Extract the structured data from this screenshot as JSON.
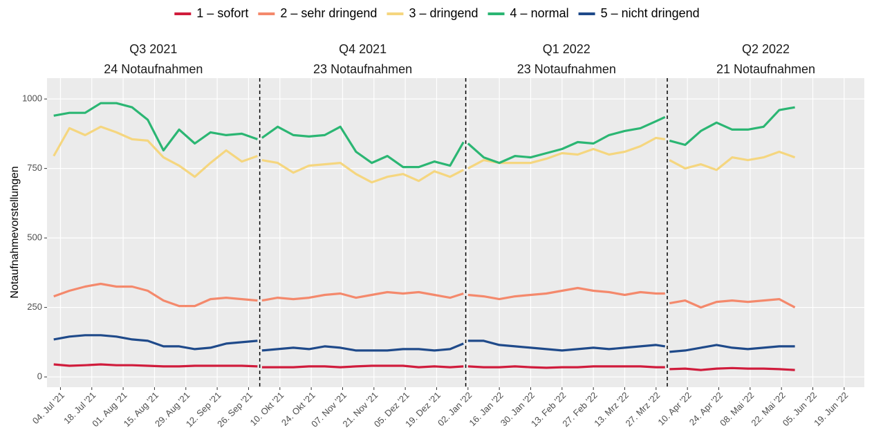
{
  "chart_data": {
    "type": "line",
    "ylabel": "Notaufnahmevorstellungen",
    "legend": "top",
    "grid": true,
    "panels": [
      {
        "title": "Q3 2021",
        "subtitle": "24 Notaufnahmen"
      },
      {
        "title": "Q4 2021",
        "subtitle": "23 Notaufnahmen"
      },
      {
        "title": "Q1 2022",
        "subtitle": "23 Notaufnahmen"
      },
      {
        "title": "Q2 2022",
        "subtitle": "21 Notaufnahmen"
      }
    ],
    "vlines": [
      "2021-10-01",
      "2022-01-01",
      "2022-04-01"
    ],
    "xlim": [
      "2021-06-28",
      "2022-06-28"
    ],
    "xticks": [
      {
        "value": "2021-07-04",
        "label": "04. Jul '21"
      },
      {
        "value": "2021-07-18",
        "label": "18. Jul '21"
      },
      {
        "value": "2021-08-01",
        "label": "01. Aug '21"
      },
      {
        "value": "2021-08-15",
        "label": "15. Aug '21"
      },
      {
        "value": "2021-08-29",
        "label": "29. Aug '21"
      },
      {
        "value": "2021-09-12",
        "label": "12. Sep '21"
      },
      {
        "value": "2021-09-26",
        "label": "26. Sep '21"
      },
      {
        "value": "2021-10-10",
        "label": "10. Okt '21"
      },
      {
        "value": "2021-10-24",
        "label": "24. Okt '21"
      },
      {
        "value": "2021-11-07",
        "label": "07. Nov '21"
      },
      {
        "value": "2021-11-21",
        "label": "21. Nov '21"
      },
      {
        "value": "2021-12-05",
        "label": "05. Dez '21"
      },
      {
        "value": "2021-12-19",
        "label": "19. Dez '21"
      },
      {
        "value": "2022-01-02",
        "label": "02. Jan '22"
      },
      {
        "value": "2022-01-16",
        "label": "16. Jan '22"
      },
      {
        "value": "2022-01-30",
        "label": "30. Jan '22"
      },
      {
        "value": "2022-02-13",
        "label": "13. Feb '22"
      },
      {
        "value": "2022-02-27",
        "label": "27. Feb '22"
      },
      {
        "value": "2022-03-13",
        "label": "13. Mrz '22"
      },
      {
        "value": "2022-03-27",
        "label": "27. Mrz '22"
      },
      {
        "value": "2022-04-10",
        "label": "10. Apr '22"
      },
      {
        "value": "2022-04-24",
        "label": "24. Apr '22"
      },
      {
        "value": "2022-05-08",
        "label": "08. Mai '22"
      },
      {
        "value": "2022-05-22",
        "label": "22. Mai '22"
      },
      {
        "value": "2022-06-05",
        "label": "05. Jun '22"
      },
      {
        "value": "2022-06-19",
        "label": "19. Jun '22"
      }
    ],
    "ylim": [
      -37,
      1075
    ],
    "yticks": [
      0,
      250,
      500,
      750,
      1000
    ],
    "x": [
      "2021-07-01",
      "2021-07-08",
      "2021-07-15",
      "2021-07-22",
      "2021-07-29",
      "2021-08-05",
      "2021-08-12",
      "2021-08-19",
      "2021-08-26",
      "2021-09-02",
      "2021-09-09",
      "2021-09-16",
      "2021-09-23",
      "2021-09-30",
      "2021-10-01",
      "2021-10-02",
      "2021-10-09",
      "2021-10-16",
      "2021-10-23",
      "2021-10-30",
      "2021-11-06",
      "2021-11-13",
      "2021-11-20",
      "2021-11-27",
      "2021-12-04",
      "2021-12-11",
      "2021-12-18",
      "2021-12-25",
      "2021-12-31",
      "2022-01-01",
      "2022-01-02",
      "2022-01-09",
      "2022-01-16",
      "2022-01-23",
      "2022-01-30",
      "2022-02-06",
      "2022-02-13",
      "2022-02-20",
      "2022-02-27",
      "2022-03-06",
      "2022-03-13",
      "2022-03-20",
      "2022-03-27",
      "2022-03-31",
      "2022-04-01",
      "2022-04-02",
      "2022-04-09",
      "2022-04-16",
      "2022-04-23",
      "2022-04-30",
      "2022-05-07",
      "2022-05-14",
      "2022-05-21",
      "2022-05-28"
    ],
    "series": [
      {
        "name": "1 – sofort",
        "color": "#d01c3c",
        "values": [
          45,
          40,
          42,
          45,
          42,
          42,
          40,
          38,
          38,
          40,
          40,
          40,
          40,
          38,
          null,
          35,
          35,
          35,
          38,
          38,
          35,
          38,
          40,
          40,
          40,
          35,
          38,
          35,
          38,
          null,
          38,
          35,
          35,
          38,
          35,
          33,
          35,
          35,
          38,
          38,
          38,
          38,
          35,
          35,
          null,
          28,
          30,
          25,
          30,
          32,
          30,
          30,
          28,
          25
        ]
      },
      {
        "name": "2 – sehr dringend",
        "color": "#f4896c",
        "values": [
          290,
          310,
          325,
          335,
          325,
          325,
          310,
          275,
          255,
          255,
          280,
          285,
          280,
          275,
          null,
          275,
          285,
          280,
          285,
          295,
          300,
          285,
          295,
          305,
          300,
          305,
          295,
          285,
          300,
          null,
          295,
          290,
          280,
          290,
          295,
          300,
          310,
          320,
          310,
          305,
          295,
          305,
          300,
          300,
          null,
          265,
          275,
          250,
          270,
          275,
          270,
          275,
          280,
          250
        ]
      },
      {
        "name": "3 – dringend",
        "color": "#f5d67f",
        "values": [
          795,
          895,
          870,
          900,
          880,
          855,
          850,
          790,
          760,
          720,
          770,
          815,
          775,
          795,
          null,
          780,
          770,
          735,
          760,
          765,
          770,
          730,
          700,
          720,
          730,
          705,
          740,
          720,
          745,
          null,
          750,
          780,
          770,
          770,
          770,
          785,
          805,
          800,
          820,
          800,
          810,
          830,
          860,
          855,
          null,
          780,
          750,
          765,
          745,
          790,
          780,
          790,
          810,
          790
        ]
      },
      {
        "name": "4 – normal",
        "color": "#2bb673",
        "values": [
          940,
          950,
          950,
          985,
          985,
          970,
          925,
          815,
          890,
          840,
          880,
          870,
          875,
          855,
          null,
          860,
          900,
          870,
          865,
          870,
          900,
          810,
          770,
          795,
          755,
          755,
          775,
          760,
          845,
          null,
          840,
          790,
          770,
          795,
          790,
          805,
          820,
          845,
          840,
          870,
          885,
          895,
          920,
          935,
          null,
          850,
          835,
          885,
          915,
          890,
          890,
          900,
          960,
          970
        ]
      },
      {
        "name": "5 – nicht dringend",
        "color": "#1f4a8a",
        "values": [
          135,
          145,
          150,
          150,
          145,
          135,
          130,
          110,
          110,
          100,
          105,
          120,
          125,
          130,
          null,
          95,
          100,
          105,
          100,
          110,
          105,
          95,
          95,
          95,
          100,
          100,
          95,
          100,
          120,
          null,
          130,
          130,
          115,
          110,
          105,
          100,
          95,
          100,
          105,
          100,
          105,
          110,
          115,
          110,
          null,
          90,
          95,
          105,
          115,
          105,
          100,
          105,
          110,
          110
        ]
      }
    ]
  }
}
